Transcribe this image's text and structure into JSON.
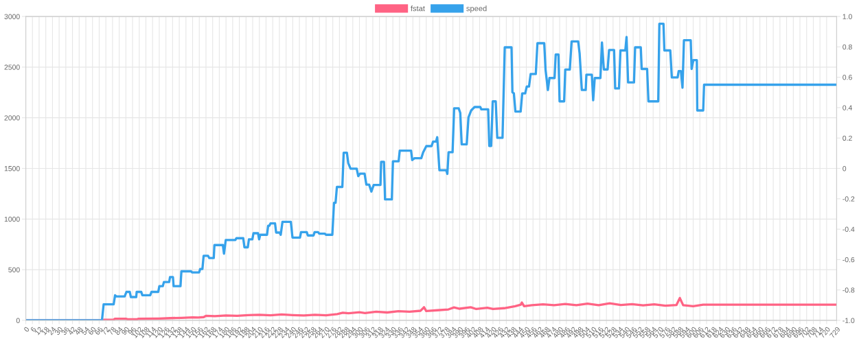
{
  "chart_data": {
    "type": "line",
    "legend": "top",
    "grid": true,
    "marker": "none",
    "line_style": "solid",
    "xlim": [
      0,
      729
    ],
    "xticks": [
      0,
      6,
      12,
      18,
      24,
      30,
      36,
      42,
      48,
      54,
      60,
      66,
      72,
      78,
      84,
      90,
      96,
      102,
      108,
      114,
      120,
      126,
      132,
      138,
      144,
      150,
      156,
      162,
      168,
      174,
      180,
      186,
      192,
      198,
      204,
      210,
      216,
      222,
      228,
      234,
      240,
      246,
      252,
      258,
      264,
      270,
      276,
      282,
      288,
      294,
      300,
      306,
      312,
      318,
      324,
      330,
      336,
      342,
      348,
      354,
      360,
      366,
      372,
      378,
      384,
      390,
      396,
      402,
      408,
      414,
      420,
      426,
      432,
      438,
      444,
      450,
      456,
      462,
      468,
      474,
      480,
      486,
      492,
      498,
      504,
      510,
      516,
      522,
      528,
      534,
      540,
      546,
      552,
      558,
      564,
      570,
      576,
      582,
      588,
      594,
      600,
      606,
      612,
      618,
      624,
      630,
      636,
      642,
      648,
      654,
      660,
      666,
      672,
      678,
      684,
      690,
      696,
      702,
      708,
      714,
      720,
      729
    ],
    "ylim": [
      0,
      3000
    ],
    "yticks": [
      0,
      500,
      1000,
      1500,
      2000,
      2500,
      3000
    ],
    "y2lim": [
      -1,
      1
    ],
    "y2ticks": [
      {
        "value": -1,
        "label": "-1.0"
      },
      -0.8,
      -0.6,
      -0.4,
      -0.2,
      0,
      0.2,
      0.4,
      0.6,
      0.8,
      {
        "value": 1,
        "label": "1.0"
      }
    ],
    "series": [
      {
        "name": "fstat",
        "color": "#ff6384",
        "x": [
          0,
          68,
          70,
          79,
          80,
          90,
          92,
          100,
          101,
          120,
          130,
          140,
          150,
          155,
          160,
          162,
          170,
          180,
          190,
          200,
          210,
          220,
          230,
          240,
          250,
          260,
          270,
          280,
          285,
          290,
          300,
          305,
          315,
          325,
          335,
          345,
          355,
          358,
          360,
          370,
          380,
          385,
          390,
          400,
          405,
          415,
          420,
          430,
          440,
          445,
          446,
          448,
          455,
          465,
          475,
          485,
          495,
          505,
          515,
          525,
          535,
          545,
          555,
          565,
          575,
          585,
          588,
          591,
          600,
          605,
          609,
          729
        ],
        "values": [
          0,
          0,
          5,
          5,
          16,
          16,
          10,
          10,
          15,
          18,
          22,
          25,
          30,
          28,
          32,
          45,
          42,
          48,
          45,
          52,
          55,
          50,
          58,
          52,
          48,
          55,
          50,
          62,
          75,
          70,
          80,
          72,
          85,
          78,
          90,
          85,
          95,
          130,
          92,
          100,
          108,
          128,
          115,
          130,
          112,
          125,
          112,
          120,
          140,
          155,
          176,
          140,
          150,
          158,
          150,
          162,
          150,
          165,
          150,
          168,
          152,
          160,
          148,
          158,
          145,
          152,
          221,
          150,
          140,
          148,
          155,
          155
        ]
      },
      {
        "name": "speed",
        "color": "#36a2eb",
        "x": [
          0,
          68.5,
          70,
          79,
          80.3,
          81.5,
          88.9,
          90.5,
          93.5,
          94.5,
          99.3,
          99.7,
          103.8,
          104.8,
          111.9,
          113,
          119.1,
          120.1,
          123.2,
          124.2,
          128.9,
          129.7,
          132.3,
          132.9,
          139.1,
          139.9,
          148.6,
          149.7,
          155.8,
          156.8,
          158.8,
          159.9,
          163.9,
          165,
          169,
          169.6,
          177.2,
          178.2,
          179.8,
          188.4,
          189.4,
          195.5,
          196.6,
          199.6,
          200.6,
          203.7,
          204.7,
          208.8,
          209.8,
          210.8,
          216.9,
          217.9,
          219,
          220,
          224.1,
          225.1,
          228.2,
          229.2,
          230.8,
          238.3,
          239.8,
          246.5,
          247.5,
          252.6,
          253.6,
          258.7,
          259.7,
          262.8,
          263.8,
          268.9,
          269.9,
          275.6,
          277.1,
          278.5,
          279.7,
          284.6,
          285.8,
          288.7,
          289.9,
          292,
          297.5,
          298.9,
          300.5,
          304.6,
          306.2,
          308.7,
          310.7,
          312.8,
          318.9,
          319.5,
          322,
          323,
          329.1,
          330.1,
          335.2,
          336.2,
          346.4,
          347.4,
          349.5,
          355.6,
          357.2,
          360.1,
          364.8,
          366.2,
          368.8,
          369.9,
          371.9,
          378,
          379,
          380.1,
          383.7,
          385.1,
          389.2,
          390.6,
          391.9,
          396.4,
          398,
          400.4,
          403.5,
          408.6,
          409.6,
          415.7,
          416.7,
          418.4,
          419.8,
          422.5,
          423.9,
          428.6,
          430.6,
          436.7,
          437.5,
          438.8,
          440.2,
          444.9,
          446.3,
          449,
          450.4,
          452.4,
          453.9,
          458.5,
          460,
          466.1,
          467.3,
          469.4,
          470.8,
          475.4,
          476.4,
          478.9,
          479.9,
          484,
          485,
          489.1,
          490.7,
          496.6,
          497.9,
          499.9,
          503.4,
          504,
          508.9,
          510.1,
          511.5,
          516.6,
          518,
          519.7,
          523.1,
          524.4,
          528.9,
          529.9,
          533.3,
          534.6,
          539,
          540.1,
          541.5,
          546.8,
          547.8,
          552.9,
          553.7,
          558.6,
          559.8,
          568.6,
          569.6,
          573.3,
          574.1,
          579.4,
          580.8,
          586,
          587,
          589,
          590.4,
          591.7,
          597.8,
          598.6,
          600.2,
          603.3,
          603.7,
          609,
          609.8,
          729
        ],
        "values": [
          0,
          0,
          158,
          158,
          248,
          236,
          236,
          281,
          281,
          230,
          230,
          281,
          281,
          248,
          248,
          281,
          281,
          338,
          338,
          378,
          378,
          428,
          428,
          338,
          338,
          484,
          484,
          473,
          473,
          507,
          507,
          637,
          637,
          615,
          615,
          743,
          743,
          658,
          793,
          793,
          811,
          811,
          721,
          721,
          800,
          800,
          860,
          860,
          800,
          845,
          845,
          934,
          934,
          957,
          957,
          867,
          867,
          845,
          973,
          973,
          817,
          817,
          871,
          871,
          838,
          838,
          871,
          871,
          856,
          856,
          845,
          845,
          1160,
          1160,
          1317,
          1317,
          1655,
          1655,
          1554,
          1498,
          1498,
          1424,
          1448,
          1448,
          1340,
          1340,
          1272,
          1337,
          1337,
          1565,
          1565,
          1194,
          1194,
          1570,
          1570,
          1675,
          1675,
          1583,
          1601,
          1601,
          1657,
          1720,
          1720,
          1765,
          1765,
          1808,
          1482,
          1482,
          1446,
          1660,
          1660,
          2093,
          2093,
          2049,
          1738,
          1738,
          2004,
          2072,
          2106,
          2106,
          2083,
          2083,
          1722,
          1722,
          2162,
          2162,
          1802,
          1802,
          2695,
          2695,
          2252,
          2241,
          2061,
          2061,
          2241,
          2241,
          2308,
          2308,
          2432,
          2432,
          2736,
          2736,
          2473,
          2274,
          2392,
          2392,
          2624,
          2624,
          2162,
          2162,
          2476,
          2476,
          2754,
          2754,
          2637,
          2274,
          2274,
          2425,
          2425,
          2173,
          2392,
          2392,
          2743,
          2477,
          2477,
          2669,
          2669,
          2290,
          2290,
          2665,
          2665,
          2797,
          2349,
          2349,
          2695,
          2695,
          2482,
          2482,
          2162,
          2162,
          2928,
          2928,
          2665,
          2665,
          2398,
          2398,
          2461,
          2461,
          2297,
          2765,
          2765,
          2482,
          2569,
          2569,
          2072,
          2072,
          2326,
          2326
        ]
      }
    ]
  }
}
